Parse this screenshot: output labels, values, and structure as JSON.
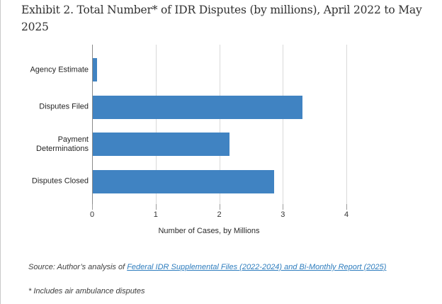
{
  "figure": {
    "title": "Exhibit 2. Total Number* of IDR Disputes (by millions), April 2022 to May 2025",
    "source_prefix": "Source: Author’s analysis of ",
    "source_link": "Federal IDR Supplemental Files (2022-2024) and Bi-Monthly Report (2025)",
    "footnote": "* Includes air ambulance disputes"
  },
  "colors": {
    "bar": "#4083C2",
    "link": "#2E7DBE",
    "gridline": "#D9D9D9",
    "axis_line": "#8A8A8A",
    "text": "#333333"
  },
  "chart_data": {
    "type": "bar",
    "orientation": "horizontal",
    "title": "Exhibit 2. Total Number* of IDR Disputes (by millions), April 2022 to May 2025",
    "categories": [
      "Agency Estimate",
      "Disputes Filed",
      "Payment Determinations",
      "Disputes Closed"
    ],
    "values": [
      0.07,
      3.3,
      2.15,
      2.85
    ],
    "xlabel": "Number of Cases, by Millions",
    "ylabel": "",
    "xlim": [
      0,
      4
    ],
    "xticks": [
      0,
      1,
      2,
      3,
      4
    ],
    "grid": "vertical-gridlines-on",
    "legend": "none"
  }
}
